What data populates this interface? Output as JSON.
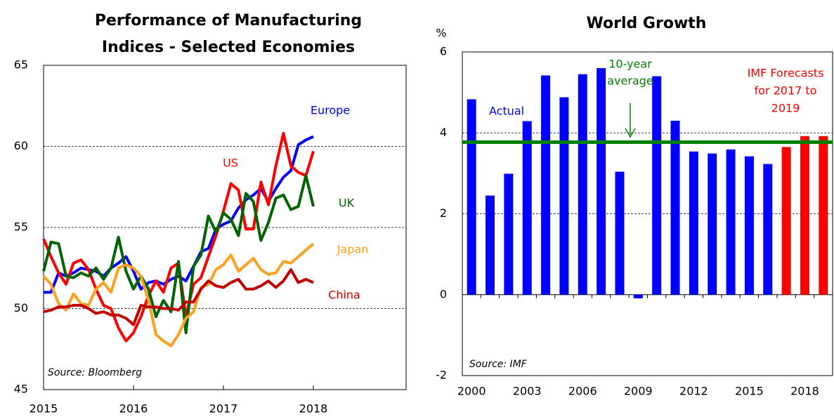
{
  "chart_data": [
    {
      "type": "line",
      "title": [
        "Performance of Manufacturing",
        "Indices - Selected Economies"
      ],
      "x": [
        2015,
        2015.083,
        2015.167,
        2015.25,
        2015.333,
        2015.417,
        2015.5,
        2015.583,
        2015.667,
        2015.75,
        2015.833,
        2015.917,
        2016,
        2016.083,
        2016.167,
        2016.25,
        2016.333,
        2016.417,
        2016.5,
        2016.583,
        2016.667,
        2016.75,
        2016.833,
        2016.917,
        2017,
        2017.083,
        2017.167,
        2017.25,
        2017.333,
        2017.417,
        2017.5,
        2017.583,
        2017.667,
        2017.75,
        2017.833,
        2017.917,
        2018
      ],
      "series": [
        {
          "name": "Europe",
          "color": "#0000ff",
          "values": [
            51.0,
            51.0,
            52.2,
            52.0,
            52.2,
            52.5,
            52.4,
            52.3,
            52.0,
            52.5,
            52.8,
            53.2,
            52.3,
            51.2,
            51.6,
            51.7,
            51.5,
            51.8,
            52.0,
            51.7,
            52.6,
            53.5,
            53.7,
            54.9,
            55.2,
            55.4,
            56.2,
            56.7,
            57.0,
            57.4,
            56.6,
            57.4,
            58.1,
            58.5,
            60.1,
            60.4,
            60.6
          ]
        },
        {
          "name": "US",
          "color": "#ff0000",
          "values": [
            54.3,
            53.2,
            52.2,
            51.5,
            52.8,
            53.0,
            52.4,
            51.2,
            50.2,
            50.0,
            48.8,
            48.0,
            48.5,
            49.5,
            50.8,
            51.7,
            51.0,
            52.5,
            52.8,
            49.5,
            51.5,
            51.9,
            53.2,
            54.5,
            56.0,
            57.7,
            57.3,
            54.9,
            54.9,
            57.8,
            56.4,
            58.8,
            60.8,
            58.8,
            58.4,
            58.2,
            59.7
          ]
        },
        {
          "name": "UK",
          "color": "#006400",
          "values": [
            52.3,
            54.1,
            54.0,
            52.0,
            51.9,
            52.2,
            52.0,
            52.5,
            51.8,
            52.5,
            54.4,
            52.3,
            51.2,
            52.0,
            51.2,
            49.5,
            50.5,
            49.8,
            52.9,
            48.5,
            52.6,
            53.3,
            55.7,
            54.7,
            55.9,
            55.5,
            54.5,
            57.1,
            56.6,
            54.2,
            55.3,
            56.8,
            57.0,
            56.1,
            56.3,
            58.2,
            56.3
          ]
        },
        {
          "name": "Japan",
          "color": "#ffa020",
          "values": [
            52.0,
            51.5,
            50.3,
            49.9,
            50.9,
            50.3,
            50.2,
            51.2,
            51.6,
            51.0,
            52.5,
            52.7,
            52.5,
            52.0,
            50.5,
            48.4,
            48.0,
            47.7,
            48.4,
            49.4,
            49.8,
            51.3,
            51.5,
            52.4,
            52.7,
            53.3,
            52.3,
            52.7,
            53.1,
            52.4,
            52.1,
            52.2,
            52.9,
            52.8,
            53.2,
            53.6,
            54.0
          ]
        },
        {
          "name": "China",
          "color": "#c00000",
          "values": [
            49.8,
            49.9,
            50.1,
            50.1,
            50.2,
            50.2,
            50.0,
            49.7,
            49.8,
            49.6,
            49.6,
            49.4,
            49.0,
            50.2,
            50.1,
            50.1,
            50.0,
            50.0,
            49.9,
            50.4,
            50.4,
            51.2,
            51.7,
            51.4,
            51.3,
            51.6,
            51.8,
            51.2,
            51.2,
            51.4,
            51.7,
            51.3,
            51.7,
            52.4,
            51.6,
            51.8,
            51.6
          ]
        }
      ],
      "xlim": [
        2015,
        2019
      ],
      "xticks": [
        2015,
        2016,
        2017,
        2018
      ],
      "ylim": [
        45,
        65
      ],
      "yticks": [
        45,
        50,
        55,
        60,
        65
      ],
      "grid": true,
      "annotations": [
        "Source: Bloomberg"
      ]
    },
    {
      "type": "bar",
      "title": "World Growth",
      "y_label": "%",
      "categories": [
        "2000",
        null,
        null,
        "2003",
        null,
        null,
        "2006",
        null,
        null,
        "2009",
        null,
        null,
        "2012",
        null,
        null,
        "2015",
        null,
        null,
        "2018",
        null
      ],
      "values": [
        4.83,
        2.45,
        2.99,
        4.29,
        5.42,
        4.88,
        5.45,
        5.6,
        3.04,
        -0.09,
        5.4,
        4.3,
        3.54,
        3.49,
        3.59,
        3.42,
        3.23,
        3.65,
        3.92,
        3.92
      ],
      "colors": [
        "#0000ff",
        "#0000ff",
        "#0000ff",
        "#0000ff",
        "#0000ff",
        "#0000ff",
        "#0000ff",
        "#0000ff",
        "#0000ff",
        "#0000ff",
        "#0000ff",
        "#0000ff",
        "#0000ff",
        "#0000ff",
        "#0000ff",
        "#0000ff",
        "#0000ff",
        "#ff0000",
        "#ff0000",
        "#ff0000"
      ],
      "ylim": [
        -2,
        6
      ],
      "yticks": [
        -2,
        0,
        2,
        4,
        6
      ],
      "grid": true,
      "average": {
        "label": [
          "10-year",
          "average"
        ],
        "value": 3.77,
        "color": "#008000"
      },
      "annotations": [
        {
          "text": [
            "Actual"
          ],
          "color": "#0000ff"
        },
        {
          "text": [
            "IMF Forecasts",
            "for 2017 to",
            "2019"
          ],
          "color": "#ff0000"
        },
        {
          "text": [
            "Source: IMF"
          ],
          "color": "#000000"
        }
      ]
    }
  ]
}
